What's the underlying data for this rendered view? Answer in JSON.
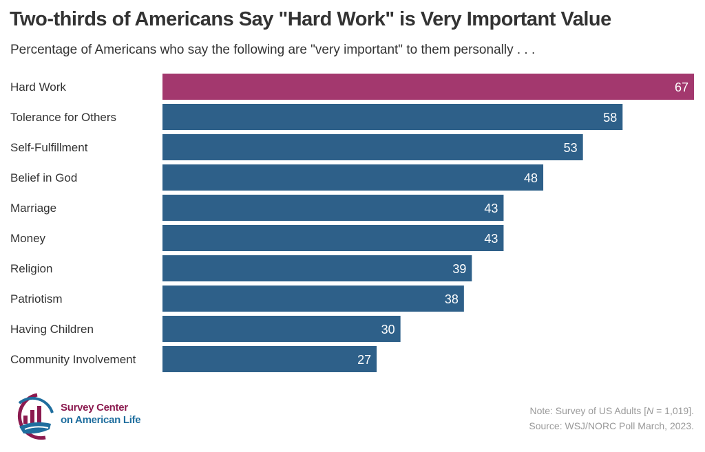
{
  "chart_data": {
    "type": "bar",
    "orientation": "horizontal",
    "title": "Two-thirds of Americans Say \"Hard Work\" is Very Important Value",
    "subtitle": "Percentage of Americans who say the following are \"very important\" to them personally . . .",
    "categories": [
      "Hard Work",
      "Tolerance for Others",
      "Self-Fulfillment",
      "Belief in God",
      "Marriage",
      "Money",
      "Religion",
      "Patriotism",
      "Having Children",
      "Community Involvement"
    ],
    "values": [
      67,
      58,
      53,
      48,
      43,
      43,
      39,
      38,
      30,
      27
    ],
    "highlight_index": 0,
    "xlim": [
      0,
      67
    ],
    "grid": false,
    "colors": {
      "highlight": "#A3386E",
      "default": "#2E6089",
      "label_text": "#ffffff"
    }
  },
  "note": {
    "line1_prefix": "Note: Survey of US Adults [",
    "line1_n": "N",
    "line1_suffix": " = 1,019].",
    "line2": "Source: WSJ/NORC Poll March, 2023."
  },
  "logo": {
    "line1": "Survey Center",
    "line2": "on American Life",
    "colors": {
      "maroon": "#8B1A4F",
      "blue": "#1F6E9E"
    }
  }
}
